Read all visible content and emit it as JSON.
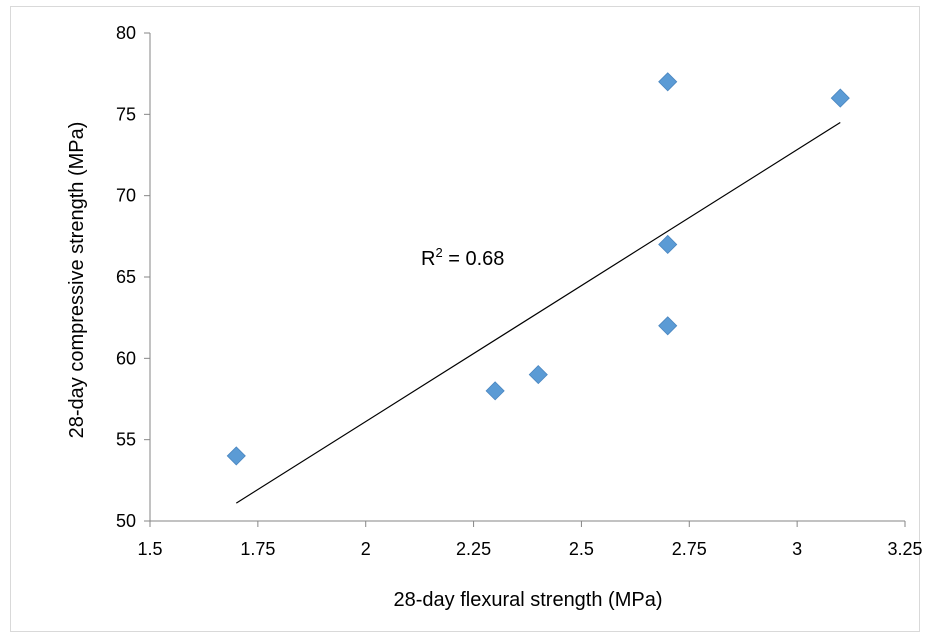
{
  "chart_data": {
    "type": "scatter",
    "title": "",
    "xlabel": "28-day flexural strength (MPa)",
    "ylabel": "28-day compressive strength (MPa)",
    "xlim": [
      1.5,
      3.25
    ],
    "ylim": [
      50,
      80
    ],
    "x_ticks": [
      1.5,
      1.75,
      2,
      2.25,
      2.5,
      2.75,
      3,
      3.25
    ],
    "x_tick_labels": [
      "1.5",
      "1.75",
      "2",
      "2.25",
      "2.5",
      "2.75",
      "3",
      "3.25"
    ],
    "y_ticks": [
      50,
      55,
      60,
      65,
      70,
      75,
      80
    ],
    "y_tick_labels": [
      "50",
      "55",
      "60",
      "65",
      "70",
      "75",
      "80"
    ],
    "grid": false,
    "legend": "none",
    "marker": "diamond",
    "marker_color": "#5B9BD5",
    "points": [
      {
        "x": 1.7,
        "y": 54
      },
      {
        "x": 2.3,
        "y": 58
      },
      {
        "x": 2.4,
        "y": 59
      },
      {
        "x": 2.7,
        "y": 62
      },
      {
        "x": 2.7,
        "y": 67
      },
      {
        "x": 2.7,
        "y": 77
      },
      {
        "x": 3.1,
        "y": 76
      }
    ],
    "trendline": {
      "type": "linear",
      "color": "#000000",
      "x_start": 1.7,
      "y_start": 51.1,
      "x_end": 3.1,
      "y_end": 74.5
    },
    "annotation": {
      "text_base": "R",
      "text_sup": "2",
      "text_rest": " = 0.68"
    }
  }
}
